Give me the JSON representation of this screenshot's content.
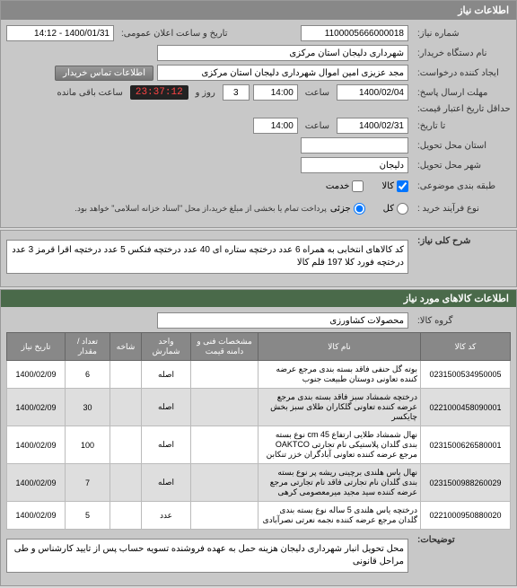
{
  "header": {
    "title": "اطلاعات نیاز"
  },
  "form": {
    "need_number_label": "شماره نیاز:",
    "need_number_value": "1100005666000018",
    "announce_date_label": "تاریخ و ساعت اعلان عمومی:",
    "announce_date_value": "1400/01/31 - 14:12",
    "buyer_org_label": "نام دستگاه خریدار:",
    "buyer_org_value": "شهرداری دلیجان استان مرکزی",
    "creator_label": "ایجاد کننده درخواست:",
    "creator_value": "مجد عزیزی امین اموال شهرداری دلیجان استان مرکزی",
    "contact_btn": "اطلاعات تماس خریدار",
    "deadline_label": "مهلت ارسال پاسخ:",
    "deadline_date_value": "1400/02/04",
    "hour_label": "ساعت",
    "deadline_time_value": "14:00",
    "days_value": "3",
    "days_label": "روز و",
    "timer_value": "23:37:12",
    "remaining_label": "ساعت باقی مانده",
    "validity_label": "حداقل تاریخ اعتبار قیمت:",
    "validity_from_label": "تا تاریخ:",
    "validity_date_value": "1400/02/31",
    "validity_time_value": "14:00",
    "delivery_province_label": "استان محل تحویل:",
    "delivery_province_value": "",
    "delivery_city_label": "شهر محل تحویل:",
    "delivery_city_value": "دلیجان",
    "category_label": "طبقه بندی موضوعی:",
    "cat_goods": "کالا",
    "cat_service": "خدمت",
    "process_label": "نوع فرآیند خرید :",
    "proc_all": "کل",
    "proc_partial": "جزئی",
    "process_note": "پرداخت تمام یا بخشی از مبلغ خرید،از محل \"اسناد خزانه اسلامی\" خواهد بود.",
    "general_label": "شرح کلی نیاز:",
    "general_desc": "کد کالاهای انتخابی به همراه 6 عدد درختچه ستاره ای 40 عدد درختچه فنکس 5 عدد درختچه اقرا قرمز 3 عدد درختچه فورد کلا 197 قلم کالا"
  },
  "items_section": {
    "title": "اطلاعات کالاهای مورد نیاز",
    "group_label": "گروه کالا:",
    "group_value": "محصولات کشاورزی"
  },
  "table": {
    "columns": [
      "کد کالا",
      "نام کالا",
      "مشخصات فنی و دامنه قیمت",
      "واحد شمارش",
      "شاخه",
      "تعداد / مقدار",
      "تاریخ نیاز"
    ],
    "rows": [
      {
        "code": "0231500534950005",
        "name": "بوته گل حنفی فاقد بسته بندی مرجع عرضه کننده تعاونی دوستان طبیعت جنوب",
        "spec": "",
        "unit": "اصله",
        "branch": "",
        "qty": "6",
        "date": "1400/02/09"
      },
      {
        "code": "0221000458090001",
        "name": "درختچه شمشاد سبز فاقد بسته بندی مرجع عرضه کننده تعاونی گلکاران طلای سبز بخش چایکسر",
        "spec": "",
        "unit": "اصله",
        "branch": "",
        "qty": "30",
        "date": "1400/02/09"
      },
      {
        "code": "0231500626580001",
        "name": "نهال شمشاد طلایی ارتفاع cm 45 نوع بسته بندی گلدان پلاستیکی نام تجارتی OAKTCO مرجع عرضه کننده تعاونی آبادگران خزر تنکابن",
        "spec": "",
        "unit": "اصله",
        "branch": "",
        "qty": "100",
        "date": "1400/02/09"
      },
      {
        "code": "0231500988260029",
        "name": "نهال یاس هلندی برچینی ریشه پر نوع بسته بندی گلدان نام تجارتی فاقد نام تجارتی مرجع عرضه کننده سید مجید میرمعصومی کرهی",
        "spec": "",
        "unit": "اصله",
        "branch": "",
        "qty": "7",
        "date": "1400/02/09"
      },
      {
        "code": "0221000950880020",
        "name": "درختچه یاس هلندی 5 ساله نوع بسته بندی گلدان مرجع عرضه کننده نجمه نعرتی نصرآبادی",
        "spec": "",
        "unit": "عدد",
        "branch": "",
        "qty": "5",
        "date": "1400/02/09"
      }
    ]
  },
  "footer": {
    "explain_label": "توضیحات:",
    "explain_value": "محل تحویل انبار شهرداری دلیجان هزینه حمل به عهده فروشنده تسویه حساب پس از تایید کارشناس و طی مراحل قانونی"
  }
}
